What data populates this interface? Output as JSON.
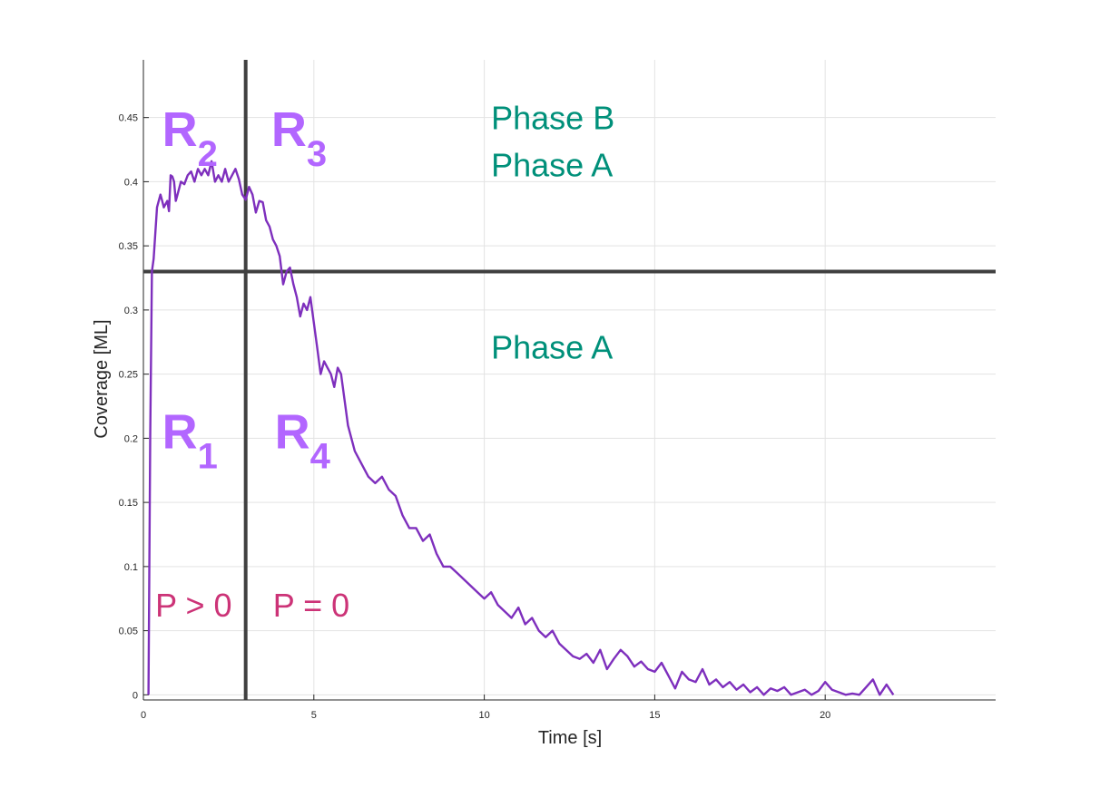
{
  "chart_data": {
    "type": "line",
    "title": "",
    "xlabel": "Time [s]",
    "ylabel": "Coverage [ML]",
    "xlim": [
      0,
      25
    ],
    "ylim": [
      -0.004,
      0.495
    ],
    "xticks": [
      0,
      5,
      10,
      15,
      20
    ],
    "xtick_labels": [
      "0",
      "5",
      "10",
      "15",
      "20"
    ],
    "yticks": [
      0,
      0.05,
      0.1,
      0.15,
      0.2,
      0.25,
      0.3,
      0.35,
      0.4,
      0.45
    ],
    "ytick_labels": [
      "0",
      "0.05",
      "0.1",
      "0.15",
      "0.2",
      "0.25",
      "0.3",
      "0.35",
      "0.4",
      "0.45"
    ],
    "grid": true,
    "line_color": "#7e2fbd",
    "reference_lines": [
      {
        "orientation": "vertical",
        "x": 3.0,
        "color": "#404040"
      },
      {
        "orientation": "horizontal",
        "y": 0.33,
        "color": "#404040"
      }
    ],
    "series": [
      {
        "x": [
          0.15,
          0.2,
          0.25,
          0.3,
          0.4,
          0.45,
          0.5,
          0.55,
          0.6,
          0.7,
          0.75,
          0.8,
          0.85,
          0.9,
          0.95,
          1.0,
          1.1,
          1.2,
          1.3,
          1.4,
          1.5,
          1.6,
          1.7,
          1.8,
          1.9,
          2.0,
          2.1,
          2.2,
          2.3,
          2.4,
          2.5,
          2.6,
          2.7,
          2.8,
          2.9,
          3.0,
          3.1,
          3.2,
          3.3,
          3.4,
          3.5,
          3.6,
          3.7,
          3.8,
          3.9,
          4.0,
          4.1,
          4.2,
          4.3,
          4.4,
          4.5,
          4.6,
          4.7,
          4.8,
          4.9,
          5.0,
          5.1,
          5.2,
          5.3,
          5.4,
          5.5,
          5.6,
          5.7,
          5.8,
          5.9,
          6.0,
          6.2,
          6.4,
          6.6,
          6.8,
          7.0,
          7.2,
          7.4,
          7.6,
          7.8,
          8.0,
          8.2,
          8.4,
          8.6,
          8.8,
          9.0,
          9.2,
          9.4,
          9.6,
          9.8,
          10.0,
          10.2,
          10.4,
          10.6,
          10.8,
          11.0,
          11.2,
          11.4,
          11.6,
          11.8,
          12.0,
          12.2,
          12.4,
          12.6,
          12.8,
          13.0,
          13.2,
          13.4,
          13.6,
          13.8,
          14.0,
          14.2,
          14.4,
          14.6,
          14.8,
          15.0,
          15.2,
          15.4,
          15.6,
          15.8,
          16.0,
          16.2,
          16.4,
          16.6,
          16.8,
          17.0,
          17.2,
          17.4,
          17.6,
          17.8,
          18.0,
          18.2,
          18.4,
          18.6,
          18.8,
          19.0,
          19.2,
          19.4,
          19.6,
          19.8,
          20.0,
          20.2,
          20.4,
          20.6,
          20.8,
          21.0,
          21.2,
          21.4,
          21.6,
          21.8,
          22.0
        ],
        "y": [
          0.0,
          0.2,
          0.33,
          0.34,
          0.38,
          0.385,
          0.39,
          0.385,
          0.38,
          0.385,
          0.377,
          0.405,
          0.404,
          0.4,
          0.385,
          0.39,
          0.4,
          0.398,
          0.405,
          0.408,
          0.4,
          0.41,
          0.405,
          0.41,
          0.405,
          0.416,
          0.4,
          0.405,
          0.4,
          0.41,
          0.4,
          0.405,
          0.41,
          0.402,
          0.39,
          0.386,
          0.396,
          0.39,
          0.376,
          0.385,
          0.384,
          0.37,
          0.365,
          0.355,
          0.35,
          0.342,
          0.32,
          0.33,
          0.333,
          0.32,
          0.31,
          0.295,
          0.305,
          0.3,
          0.31,
          0.29,
          0.27,
          0.25,
          0.26,
          0.255,
          0.25,
          0.24,
          0.255,
          0.25,
          0.23,
          0.21,
          0.19,
          0.18,
          0.17,
          0.165,
          0.17,
          0.16,
          0.155,
          0.14,
          0.13,
          0.13,
          0.12,
          0.125,
          0.11,
          0.1,
          0.1,
          0.095,
          0.09,
          0.085,
          0.08,
          0.075,
          0.08,
          0.07,
          0.065,
          0.06,
          0.068,
          0.055,
          0.06,
          0.05,
          0.045,
          0.05,
          0.04,
          0.035,
          0.03,
          0.028,
          0.032,
          0.025,
          0.035,
          0.02,
          0.028,
          0.035,
          0.03,
          0.022,
          0.026,
          0.02,
          0.018,
          0.025,
          0.015,
          0.005,
          0.018,
          0.012,
          0.01,
          0.02,
          0.008,
          0.012,
          0.006,
          0.01,
          0.004,
          0.008,
          0.002,
          0.006,
          0.0,
          0.005,
          0.003,
          0.006,
          0.0,
          0.002,
          0.004,
          0.0,
          0.003,
          0.01,
          0.004,
          0.002,
          0.0,
          0.001,
          0.0,
          0.006,
          0.012,
          0.0,
          0.008,
          0.0
        ]
      }
    ],
    "annotations": [
      {
        "id": "r2",
        "main": "R",
        "sub": "2",
        "x": 0.55,
        "y": 0.428
      },
      {
        "id": "r3",
        "main": "R",
        "sub": "3",
        "x": 3.75,
        "y": 0.428
      },
      {
        "id": "r1",
        "main": "R",
        "sub": "1",
        "x": 0.55,
        "y": 0.192
      },
      {
        "id": "r4",
        "main": "R",
        "sub": "4",
        "x": 3.85,
        "y": 0.192
      }
    ],
    "phase_labels": [
      {
        "id": "phase-b-top",
        "text": "Phase B",
        "x": 10.2,
        "y": 0.441
      },
      {
        "id": "phase-a-top",
        "text": "Phase A",
        "x": 10.2,
        "y": 0.404
      },
      {
        "id": "phase-a-bottom",
        "text": "Phase A",
        "x": 10.2,
        "y": 0.262
      }
    ],
    "pressure_labels": [
      {
        "id": "p-positive",
        "text": "P > 0",
        "x": 0.35,
        "y": 0.061
      },
      {
        "id": "p-zero",
        "text": "P = 0",
        "x": 3.8,
        "y": 0.061
      }
    ]
  }
}
